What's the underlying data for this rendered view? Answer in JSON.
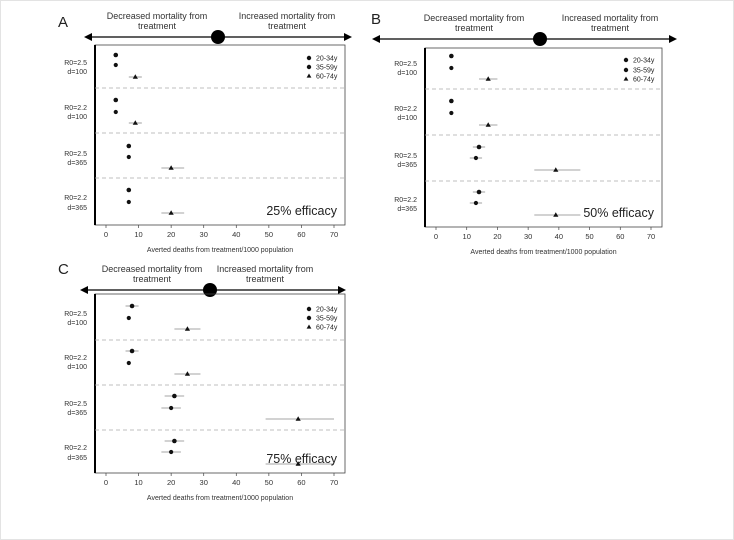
{
  "header": {
    "left": "Decreased mortality from treatment",
    "right": "Increased mortality from treatment"
  },
  "legend": [
    "20-34y",
    "35-59y",
    "60-74y"
  ],
  "xlabel": "Averted deaths from treatment/1000 population",
  "chart_data": [
    {
      "type": "scatter",
      "panel": "A",
      "annotation": "25% efficacy",
      "xlabel": "Averted deaths from treatment/1000 population",
      "xlim": [
        0,
        70
      ],
      "xticks": [
        0,
        10,
        20,
        30,
        40,
        50,
        60,
        70
      ],
      "groups": [
        {
          "label": [
            "R0=2.5",
            "d=100"
          ],
          "points": [
            {
              "age": "20-34y",
              "value": 3
            },
            {
              "age": "35-59y",
              "value": 3
            },
            {
              "age": "60-74y",
              "value": 9,
              "lo": 7,
              "hi": 11
            }
          ]
        },
        {
          "label": [
            "R0=2.2",
            "d=100"
          ],
          "points": [
            {
              "age": "20-34y",
              "value": 3
            },
            {
              "age": "35-59y",
              "value": 3
            },
            {
              "age": "60-74y",
              "value": 9,
              "lo": 7,
              "hi": 11
            }
          ]
        },
        {
          "label": [
            "R0=2.5",
            "d=365"
          ],
          "points": [
            {
              "age": "20-34y",
              "value": 7
            },
            {
              "age": "35-59y",
              "value": 7
            },
            {
              "age": "60-74y",
              "value": 20,
              "lo": 17,
              "hi": 24
            }
          ]
        },
        {
          "label": [
            "R0=2.2",
            "d=365"
          ],
          "points": [
            {
              "age": "20-34y",
              "value": 7
            },
            {
              "age": "35-59y",
              "value": 7
            },
            {
              "age": "60-74y",
              "value": 20,
              "lo": 17,
              "hi": 24
            }
          ]
        }
      ]
    },
    {
      "type": "scatter",
      "panel": "B",
      "annotation": "50% efficacy",
      "xlabel": "Averted deaths from treatment/1000 population",
      "xlim": [
        0,
        70
      ],
      "xticks": [
        0,
        10,
        20,
        30,
        40,
        50,
        60,
        70
      ],
      "groups": [
        {
          "label": [
            "R0=2.5",
            "d=100"
          ],
          "points": [
            {
              "age": "20-34y",
              "value": 5
            },
            {
              "age": "35-59y",
              "value": 5
            },
            {
              "age": "60-74y",
              "value": 17,
              "lo": 14,
              "hi": 20
            }
          ]
        },
        {
          "label": [
            "R0=2.2",
            "d=100"
          ],
          "points": [
            {
              "age": "20-34y",
              "value": 5
            },
            {
              "age": "35-59y",
              "value": 5
            },
            {
              "age": "60-74y",
              "value": 17,
              "lo": 14,
              "hi": 20
            }
          ]
        },
        {
          "label": [
            "R0=2.5",
            "d=365"
          ],
          "points": [
            {
              "age": "20-34y",
              "value": 14,
              "lo": 12,
              "hi": 16
            },
            {
              "age": "35-59y",
              "value": 13,
              "lo": 11,
              "hi": 15
            },
            {
              "age": "60-74y",
              "value": 39,
              "lo": 32,
              "hi": 47
            }
          ]
        },
        {
          "label": [
            "R0=2.2",
            "d=365"
          ],
          "points": [
            {
              "age": "20-34y",
              "value": 14,
              "lo": 12,
              "hi": 16
            },
            {
              "age": "35-59y",
              "value": 13,
              "lo": 11,
              "hi": 15
            },
            {
              "age": "60-74y",
              "value": 39,
              "lo": 32,
              "hi": 47
            }
          ]
        }
      ]
    },
    {
      "type": "scatter",
      "panel": "C",
      "annotation": "75% efficacy",
      "xlabel": "Averted deaths from treatment/1000 population",
      "xlim": [
        0,
        70
      ],
      "xticks": [
        0,
        10,
        20,
        30,
        40,
        50,
        60,
        70
      ],
      "groups": [
        {
          "label": [
            "R0=2.5",
            "d=100"
          ],
          "points": [
            {
              "age": "20-34y",
              "value": 8,
              "lo": 6,
              "hi": 10
            },
            {
              "age": "35-59y",
              "value": 7
            },
            {
              "age": "60-74y",
              "value": 25,
              "lo": 21,
              "hi": 29
            }
          ]
        },
        {
          "label": [
            "R0=2.2",
            "d=100"
          ],
          "points": [
            {
              "age": "20-34y",
              "value": 8,
              "lo": 6,
              "hi": 10
            },
            {
              "age": "35-59y",
              "value": 7
            },
            {
              "age": "60-74y",
              "value": 25,
              "lo": 21,
              "hi": 29
            }
          ]
        },
        {
          "label": [
            "R0=2.5",
            "d=365"
          ],
          "points": [
            {
              "age": "20-34y",
              "value": 21,
              "lo": 18,
              "hi": 24
            },
            {
              "age": "35-59y",
              "value": 20,
              "lo": 17,
              "hi": 23
            },
            {
              "age": "60-74y",
              "value": 59,
              "lo": 49,
              "hi": 70
            }
          ]
        },
        {
          "label": [
            "R0=2.2",
            "d=365"
          ],
          "points": [
            {
              "age": "20-34y",
              "value": 21,
              "lo": 18,
              "hi": 24
            },
            {
              "age": "35-59y",
              "value": 20,
              "lo": 17,
              "hi": 23
            },
            {
              "age": "60-74y",
              "value": 59,
              "lo": 49,
              "hi": 70
            }
          ]
        }
      ]
    }
  ]
}
